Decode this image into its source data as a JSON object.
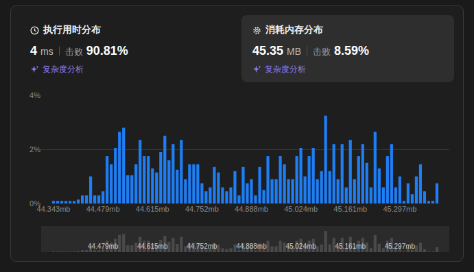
{
  "header": {
    "runtime": {
      "title": "执行用时分布",
      "value": "4",
      "unit": "ms",
      "beats_label": "击败",
      "beats": "90.81%",
      "analysis": "复杂度分析"
    },
    "memory": {
      "title": "消耗内存分布",
      "value": "45.35",
      "unit": "MB",
      "beats_label": "击败",
      "beats": "8.59%",
      "analysis": "复杂度分析"
    }
  },
  "chart_data": {
    "type": "bar",
    "categories": [
      "44.343mb",
      null,
      null,
      null,
      null,
      null,
      null,
      null,
      null,
      null,
      null,
      null,
      "44.479mb",
      null,
      null,
      null,
      null,
      null,
      null,
      null,
      null,
      null,
      null,
      null,
      "44.615mb",
      null,
      null,
      null,
      null,
      null,
      null,
      null,
      null,
      null,
      null,
      null,
      "44.752mb",
      null,
      null,
      null,
      null,
      null,
      null,
      null,
      null,
      null,
      null,
      null,
      "44.888mb",
      null,
      null,
      null,
      null,
      null,
      null,
      null,
      null,
      null,
      null,
      null,
      "45.024mb",
      null,
      null,
      null,
      null,
      null,
      null,
      null,
      null,
      null,
      null,
      null,
      "45.161mb",
      null,
      null,
      null,
      null,
      null,
      null,
      null,
      null,
      null,
      null,
      null,
      "45.297mb",
      null,
      null,
      null,
      null,
      null,
      null,
      null,
      null,
      null
    ],
    "values": [
      0.1,
      0.1,
      0.1,
      0.1,
      0.1,
      0.1,
      0.15,
      0.3,
      0.3,
      1.0,
      0.3,
      0.3,
      0.45,
      1.75,
      1.45,
      2.05,
      2.65,
      2.8,
      1.05,
      1.05,
      1.45,
      2.35,
      1.75,
      1.75,
      1.3,
      1.15,
      1.9,
      2.5,
      1.6,
      2.2,
      1.25,
      2.35,
      0.9,
      1.45,
      1.45,
      1.45,
      0.75,
      0.45,
      0.6,
      1.35,
      1.15,
      0.6,
      0.45,
      0.6,
      1.2,
      0.3,
      1.35,
      0.75,
      0.9,
      0.3,
      1.35,
      0.5,
      1.75,
      0.9,
      0.9,
      1.75,
      1.45,
      0.9,
      0.9,
      1.75,
      2.05,
      1.0,
      1.75,
      2.05,
      0.9,
      1.2,
      3.25,
      1.2,
      2.2,
      0.9,
      2.2,
      0.6,
      2.35,
      0.9,
      1.75,
      2.2,
      1.5,
      0.6,
      2.65,
      1.3,
      0.6,
      1.75,
      2.2,
      0.6,
      1.0,
      0.1,
      0.75,
      0.35,
      1.0,
      1.45,
      0.45,
      0.1,
      0.1,
      0.75
    ],
    "color": "#1e7ef5",
    "ylim": [
      0,
      4
    ],
    "yticks": [
      {
        "value": 0,
        "label": "0%"
      },
      {
        "value": 2,
        "label": "2%"
      },
      {
        "value": 4,
        "label": "4%"
      }
    ],
    "grid": true
  }
}
